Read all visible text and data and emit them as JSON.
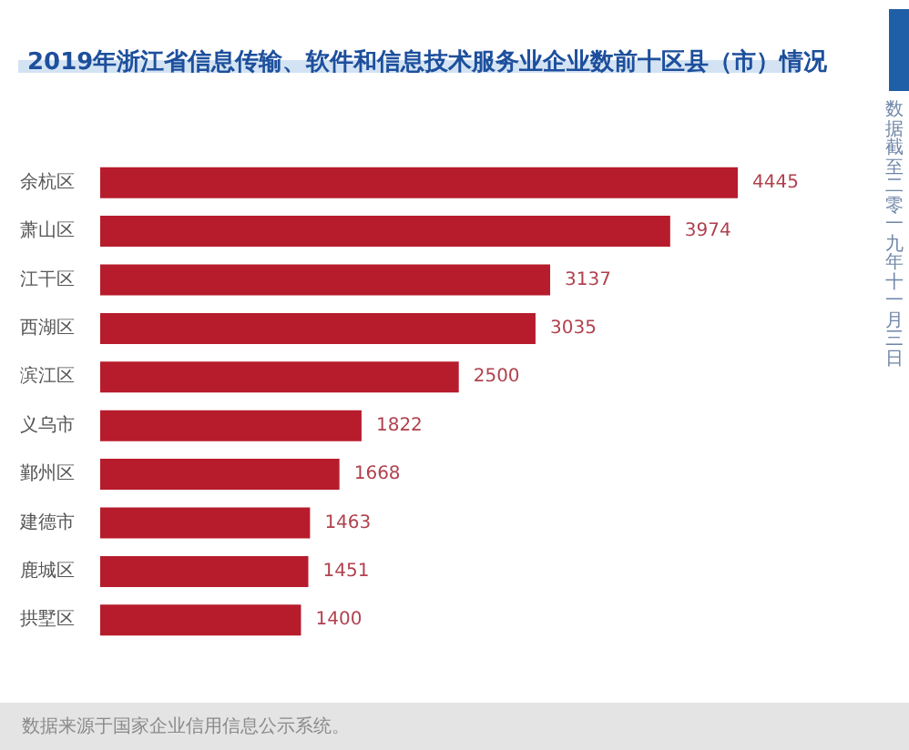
{
  "chart_data": {
    "type": "bar",
    "orientation": "horizontal",
    "title": "2019年浙江省信息传输、软件和信息技术服务业企业数前十区县（市）情况",
    "categories": [
      "余杭区",
      "萧山区",
      "江干区",
      "西湖区",
      "滨江区",
      "义乌市",
      "鄞州区",
      "建德市",
      "鹿城区",
      "拱墅区"
    ],
    "values": [
      4445,
      3974,
      3137,
      3035,
      2500,
      1822,
      1668,
      1463,
      1451,
      1400
    ],
    "color": "#b71c2c",
    "data_labels": true,
    "tick_labels": "y",
    "annotations": [
      "数据来源于国家企业信用信息公示系统。",
      "数据截至二零一九年十一月三日"
    ]
  }
}
